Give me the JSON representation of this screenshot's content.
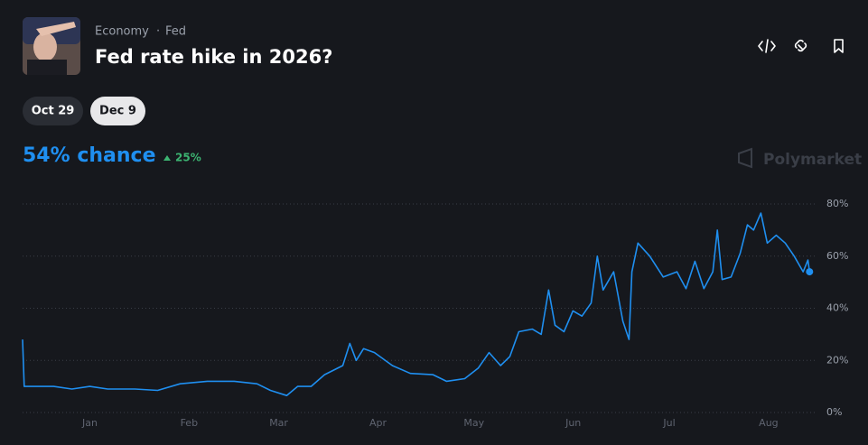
{
  "header": {
    "category": "Economy",
    "separator": "·",
    "subcategory": "Fed",
    "title": "Fed rate hike in 2026?",
    "tabs": [
      "Oct 29",
      "Dec 9"
    ],
    "chance": "54% chance",
    "change": "25%",
    "brand": "Polymarket"
  },
  "chart_data": {
    "type": "line",
    "x": [
      -21,
      -20.5,
      -18.3,
      -11.3,
      -5.6,
      0,
      5.6,
      14.1,
      21.2,
      28.2,
      36.7,
      45.1,
      52.2,
      56.4,
      61.5,
      64.9,
      69.1,
      73.3,
      79,
      81.2,
      83.2,
      85.5,
      88.9,
      94.5,
      100.1,
      107.2,
      111.4,
      117.1,
      121.3,
      124.7,
      128.3,
      131.2,
      134,
      138.2,
      141,
      143.3,
      145.3,
      148.1,
      150.9,
      153.7,
      156.6,
      158.5,
      160.3,
      163.6,
      166.5,
      168.4,
      169.3,
      171.2,
      174.9,
      179.1,
      183.4,
      186.2,
      189,
      191.8,
      194.6,
      196,
      197.5,
      200.3,
      203.1,
      205.4,
      207.3,
      209.6,
      211.6,
      214.4,
      217.2,
      220,
      222.8,
      224.3,
      224.8
    ],
    "series": [
      {
        "color": "#1f8ff0",
        "values": [
          28,
          10,
          10,
          10,
          9,
          10,
          9,
          9,
          8.5,
          11,
          12,
          12,
          11,
          8.5,
          6.5,
          10,
          10,
          14.5,
          18,
          26.5,
          20,
          24.5,
          23,
          18,
          15,
          14.5,
          12,
          13,
          17,
          23,
          18,
          21.5,
          31,
          32,
          30,
          47,
          33.5,
          31,
          39,
          37,
          42,
          60,
          47,
          54,
          35,
          28,
          54,
          65,
          60,
          52,
          54,
          47.5,
          58,
          47.5,
          54,
          70,
          51,
          52,
          61,
          72,
          70,
          76.5,
          65,
          68,
          65,
          60,
          54,
          58.5,
          54
        ]
      }
    ],
    "xlim": [
      -21,
      225
    ],
    "xticks": [
      {
        "value": 0,
        "label": "Jan"
      },
      {
        "value": 31,
        "label": "Feb"
      },
      {
        "value": 59,
        "label": "Mar"
      },
      {
        "value": 90,
        "label": "Apr"
      },
      {
        "value": 120,
        "label": "May"
      },
      {
        "value": 151,
        "label": "Jun"
      },
      {
        "value": 181,
        "label": "Jul"
      },
      {
        "value": 212,
        "label": "Aug"
      }
    ],
    "ylim": [
      0,
      80
    ],
    "yticks": [
      {
        "value": 0,
        "label": "0%"
      },
      {
        "value": 20,
        "label": "20%"
      },
      {
        "value": 40,
        "label": "40%"
      },
      {
        "value": 60,
        "label": "60%"
      },
      {
        "value": 80,
        "label": "80%"
      }
    ],
    "grid": true
  }
}
